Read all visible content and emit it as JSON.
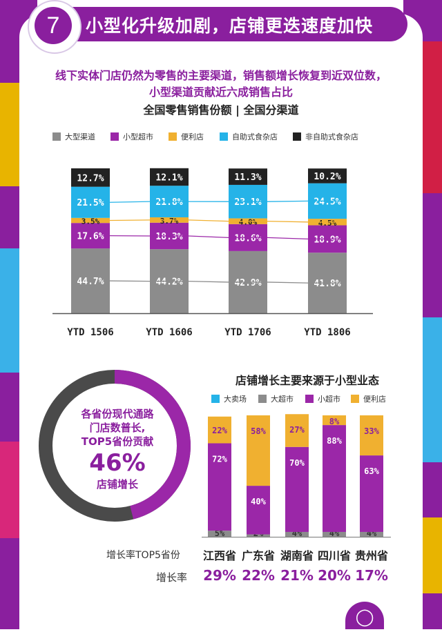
{
  "header": {
    "number": "7",
    "title": "小型化升级加剧，店铺更迭速度加快"
  },
  "subtitle": {
    "line1": "线下实体门店仍然为零售的主要渠道，销售额增长恢复到近双位数，",
    "line2": "小型渠道贡献近六成销售占比"
  },
  "colors": {
    "large": "#8c8c8c",
    "mini": "#9b27a8",
    "convenience": "#f0b030",
    "self_service": "#25b3e8",
    "non_self": "#222222",
    "hyper": "#25b3e8",
    "super": "#8c8c8c"
  },
  "chart_data": [
    {
      "type": "bar",
      "stacked": true,
      "title": "全国零售销售份额 | 全国分渠道",
      "categories": [
        "YTD 1506",
        "YTD 1606",
        "YTD 1706",
        "YTD 1806"
      ],
      "series": [
        {
          "name": "大型渠道",
          "values": [
            44.7,
            44.2,
            42.9,
            41.8
          ],
          "labels": [
            "44.7%",
            "44.2%",
            "42.9%",
            "41.8%"
          ]
        },
        {
          "name": "小型超市",
          "values": [
            17.6,
            18.3,
            18.6,
            18.9
          ],
          "labels": [
            "17.6%",
            "18.3%",
            "18.6%",
            "18.9%"
          ]
        },
        {
          "name": "便利店",
          "values": [
            3.5,
            3.7,
            4.0,
            4.5
          ],
          "labels": [
            "3.5%",
            "3.7%",
            "4.0%",
            "4.5%"
          ]
        },
        {
          "name": "自助式食杂店",
          "values": [
            21.5,
            21.8,
            23.1,
            24.5
          ],
          "labels": [
            "21.5%",
            "21.8%",
            "23.1%",
            "24.5%"
          ]
        },
        {
          "name": "非自助式食杂店",
          "values": [
            12.7,
            12.1,
            11.3,
            10.2
          ],
          "labels": [
            "12.7%",
            "12.1%",
            "11.3%",
            "10.2%"
          ]
        }
      ],
      "ylim": [
        0,
        100
      ]
    },
    {
      "type": "pie",
      "values": [
        46,
        54
      ],
      "labels": [
        "46%",
        ""
      ],
      "text": {
        "line1": "各省份现代通路",
        "line2": "门店数普长,",
        "line3": "TOP5省份贡献",
        "big": "46%",
        "line4": "店铺增长"
      }
    },
    {
      "type": "bar",
      "stacked": true,
      "title": "店铺增长主要来源于小型业态",
      "categories": [
        "江西省",
        "广东省",
        "湖南省",
        "四川省",
        "贵州省"
      ],
      "series": [
        {
          "name": "大卖场",
          "values": [
            0,
            0,
            0,
            0,
            0
          ]
        },
        {
          "name": "大超市",
          "values": [
            5,
            2,
            4,
            4,
            4
          ],
          "labels": [
            "5%",
            "2%",
            "4%",
            "4%",
            "4%"
          ]
        },
        {
          "name": "小超市",
          "values": [
            72,
            40,
            70,
            88,
            63
          ],
          "labels": [
            "72%",
            "40%",
            "70%",
            "88%",
            "63%"
          ]
        },
        {
          "name": "便利店",
          "values": [
            22,
            58,
            27,
            8,
            33
          ],
          "labels": [
            "22%",
            "58%",
            "27%",
            "8%",
            "33%"
          ]
        }
      ],
      "ylim": [
        0,
        100
      ]
    }
  ],
  "provinces": {
    "row_label": "增长率TOP5省份",
    "rate_label": "增长率",
    "names": [
      "江西省",
      "广东省",
      "湖南省",
      "四川省",
      "贵州省"
    ],
    "rates": [
      "29%",
      "22%",
      "21%",
      "20%",
      "17%"
    ]
  },
  "icons": {
    "globe": "globe-icon"
  }
}
